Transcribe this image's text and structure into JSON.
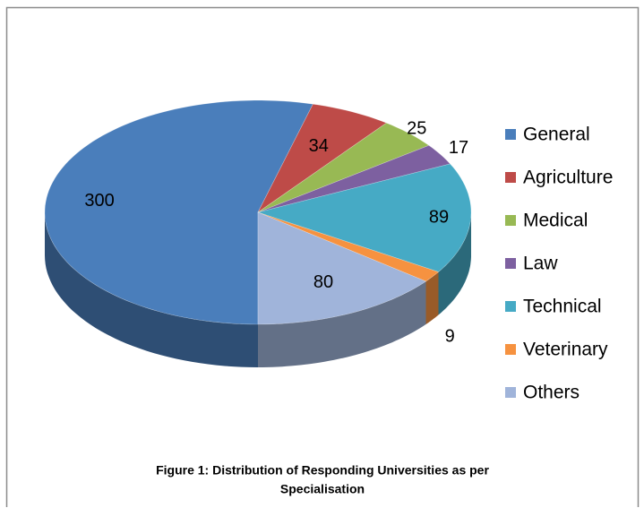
{
  "chart_data": {
    "type": "pie3d",
    "categories": [
      "General",
      "Agriculture",
      "Medical",
      "Law",
      "Technical",
      "Veterinary",
      "Others"
    ],
    "values": [
      300,
      34,
      25,
      17,
      89,
      9,
      80
    ],
    "colors": [
      "#4a7ebb",
      "#be4b48",
      "#98b954",
      "#7d60a0",
      "#46aac5",
      "#f69240",
      "#a0b4da"
    ],
    "caption": [
      "Figure 1: Distribution of Responding Universities as per",
      "Specialisation"
    ]
  }
}
